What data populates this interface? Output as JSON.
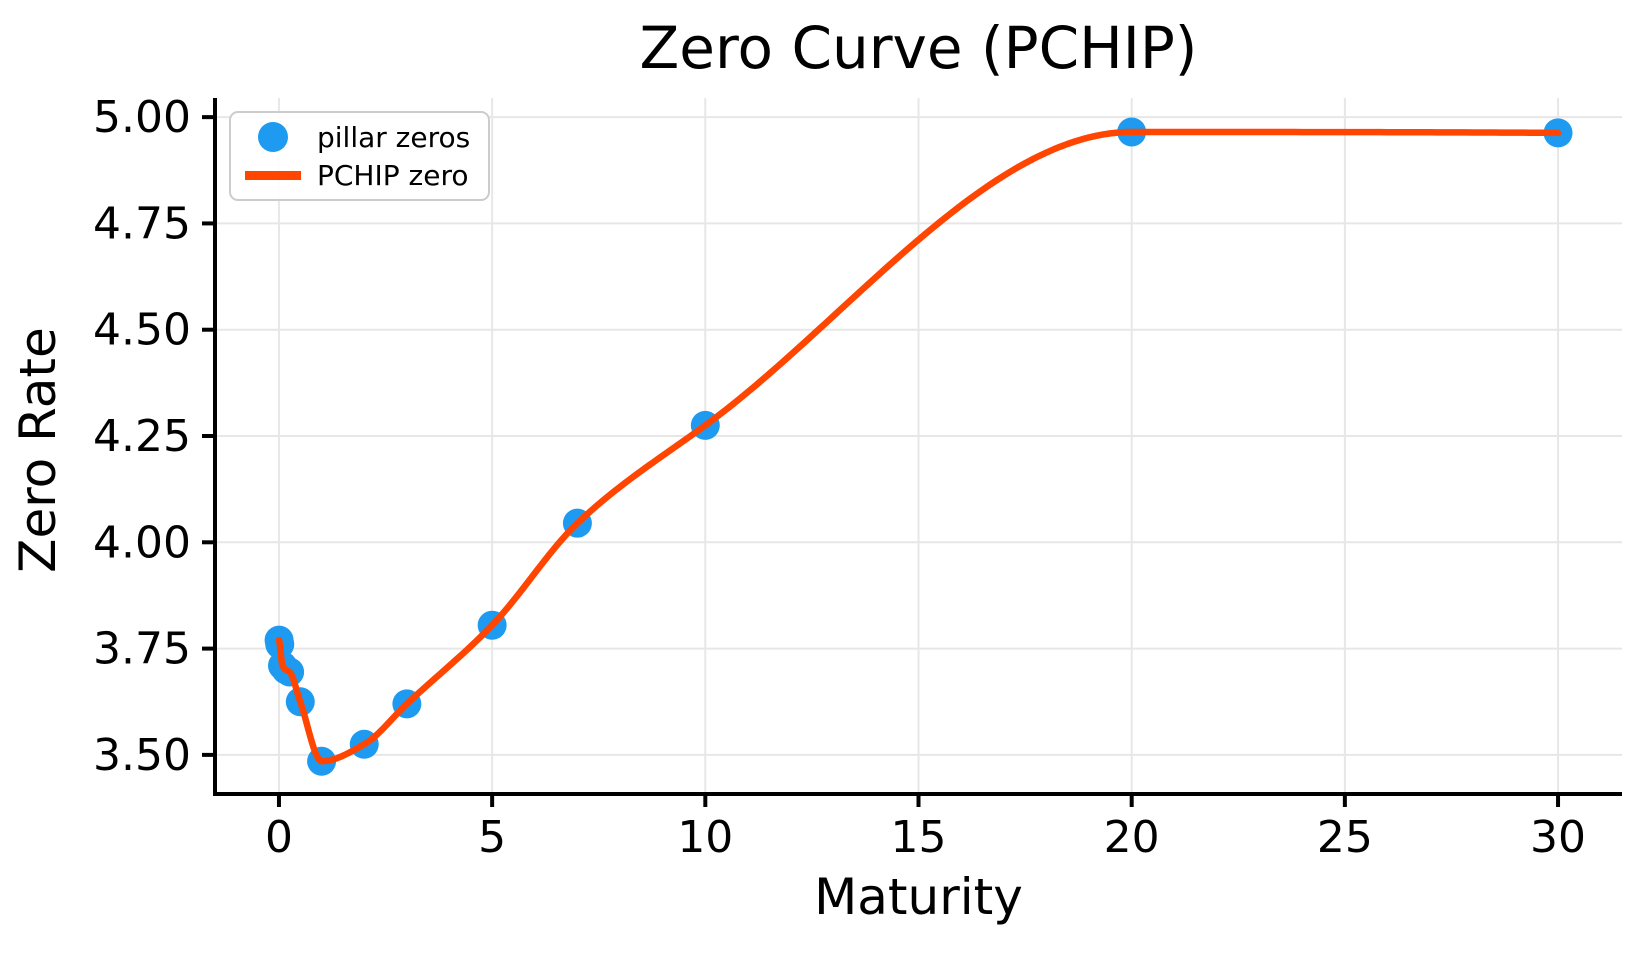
{
  "title": "Zero Curve (PCHIP)",
  "xlabel": "Maturity",
  "ylabel": "Zero Rate",
  "legend": {
    "items": [
      {
        "label": "pillar zeros",
        "type": "marker",
        "color": "#1e9bf0"
      },
      {
        "label": "PCHIP zero",
        "type": "line",
        "color": "#ff4500"
      }
    ],
    "position": "upper left"
  },
  "colors": {
    "pillar_marker": "#1e9bf0",
    "pchip_line": "#ff4500",
    "grid": "#e7e7e7",
    "axis": "#000000"
  },
  "chart_data": {
    "type": "line",
    "title": "Zero Curve (PCHIP)",
    "xlabel": "Maturity",
    "ylabel": "Zero Rate",
    "grid": true,
    "legend_position": "upper left",
    "xlim": [
      -1.5,
      31.5
    ],
    "ylim": [
      3.408,
      5.045
    ],
    "xticks": [
      0,
      5,
      10,
      15,
      20,
      25,
      30
    ],
    "xtick_labels": [
      "0",
      "5",
      "10",
      "15",
      "20",
      "25",
      "30"
    ],
    "yticks": [
      3.5,
      3.75,
      4.0,
      4.25,
      4.5,
      4.75,
      5.0
    ],
    "ytick_labels": [
      "3.50",
      "3.75",
      "4.00",
      "4.25",
      "4.50",
      "4.75",
      "5.00"
    ],
    "series": [
      {
        "name": "pillar zeros",
        "style": "scatter",
        "color": "#1e9bf0",
        "marker_radius": 14.5,
        "x": [
          0.003,
          0.019,
          0.083,
          0.167,
          0.25,
          0.5,
          1,
          2,
          3,
          5,
          7,
          10,
          20,
          30
        ],
        "y": [
          3.77,
          3.76,
          3.71,
          3.7,
          3.695,
          3.625,
          3.485,
          3.525,
          3.62,
          3.805,
          4.045,
          4.275,
          4.965,
          4.963
        ]
      },
      {
        "name": "PCHIP zero",
        "style": "pchip",
        "color": "#ff4500",
        "line_width": 6.5,
        "interpolates": "pillar zeros"
      }
    ]
  }
}
